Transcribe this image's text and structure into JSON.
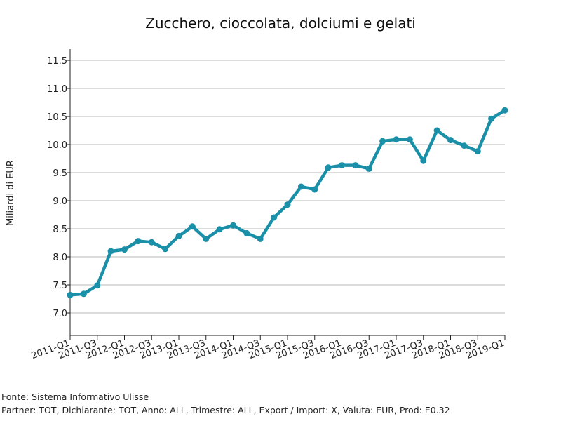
{
  "chart_data": {
    "type": "line",
    "title": "Zucchero, cioccolata, dolciumi e gelati",
    "xlabel": "",
    "ylabel": "Miliardi di EUR",
    "ylim": [
      6.6,
      11.7
    ],
    "yticks": [
      7.0,
      7.5,
      8.0,
      8.5,
      9.0,
      9.5,
      10.0,
      10.5,
      11.0,
      11.5
    ],
    "grid": true,
    "line_color": "#1a8fa8",
    "x": [
      "2011-Q1",
      "2011-Q2",
      "2011-Q3",
      "2011-Q4",
      "2012-Q1",
      "2012-Q2",
      "2012-Q3",
      "2012-Q4",
      "2013-Q1",
      "2013-Q2",
      "2013-Q3",
      "2013-Q4",
      "2014-Q1",
      "2014-Q2",
      "2014-Q3",
      "2014-Q4",
      "2015-Q1",
      "2015-Q2",
      "2015-Q3",
      "2015-Q4",
      "2016-Q1",
      "2016-Q2",
      "2016-Q3",
      "2016-Q4",
      "2017-Q1",
      "2017-Q2",
      "2017-Q3",
      "2017-Q4",
      "2018-Q1",
      "2018-Q2",
      "2018-Q3",
      "2018-Q4",
      "2019-Q1"
    ],
    "xtick_labels": [
      "2011-Q1",
      "2011-Q3",
      "2012-Q1",
      "2012-Q3",
      "2013-Q1",
      "2013-Q3",
      "2014-Q1",
      "2014-Q3",
      "2015-Q1",
      "2015-Q3",
      "2016-Q1",
      "2016-Q3",
      "2017-Q1",
      "2017-Q3",
      "2018-Q1",
      "2018-Q3",
      "2019-Q1"
    ],
    "series": [
      {
        "values": [
          7.32,
          7.34,
          7.49,
          8.1,
          8.13,
          8.28,
          8.26,
          8.14,
          8.37,
          8.54,
          8.32,
          8.49,
          8.56,
          8.42,
          8.32,
          8.7,
          8.93,
          9.25,
          9.2,
          9.59,
          9.63,
          9.63,
          9.57,
          10.06,
          10.09,
          10.09,
          9.71,
          10.25,
          10.08,
          9.98,
          9.88,
          10.46,
          10.61
        ]
      }
    ]
  },
  "footer": {
    "source": "Fonte: Sistema Informativo Ulisse",
    "details": "Partner: TOT, Dichiarante: TOT, Anno: ALL, Trimestre: ALL, Export / Import: X, Valuta: EUR, Prod: E0.32"
  }
}
